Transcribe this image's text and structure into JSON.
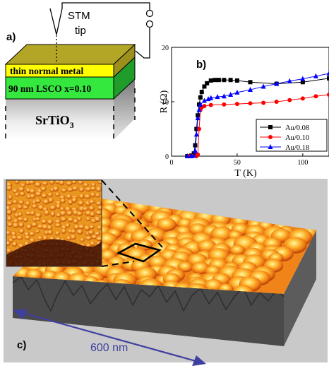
{
  "panel_a": {
    "label": "a)",
    "stm_label": "STM",
    "tip_label": "tip",
    "layer_metal": "thin normal metal",
    "layer_lsco": "90 nm LSCO x=0.10",
    "substrate_base": "SrTiO",
    "substrate_sub": "3",
    "colors": {
      "metal": "#ffff00",
      "metal_top": "#b3a526",
      "lsco": "#2dd336",
      "lsco_front": "#35e83e"
    }
  },
  "panel_b": {
    "label": "b)"
  },
  "panel_c": {
    "label": "c)",
    "scale_label": "600 nm",
    "arrow_color": "#3f3fa0"
  },
  "chart_data": {
    "type": "line",
    "xlabel": "T (K)",
    "ylabel": "R (Ω)",
    "xlim": [
      0,
      120
    ],
    "ylim": [
      0,
      20
    ],
    "xticks": [
      0,
      50,
      100
    ],
    "yticks": [
      0,
      10,
      20
    ],
    "legend": "bottom-right",
    "series": [
      {
        "name": "Au/0.08",
        "color": "#000000",
        "marker": "square",
        "x": [
          12,
          15,
          17,
          18,
          19,
          20,
          21,
          22,
          23,
          25,
          27,
          30,
          33,
          36,
          40,
          45,
          50,
          60,
          80,
          100,
          120
        ],
        "y": [
          0,
          0.1,
          0.5,
          2,
          5,
          7.5,
          9.5,
          10.8,
          11.8,
          12.8,
          13.4,
          13.9,
          14.0,
          14.0,
          14.0,
          14.0,
          13.9,
          13.6,
          13.3,
          13.6,
          14.3
        ]
      },
      {
        "name": "Au/0.10",
        "color": "#ff0000",
        "marker": "circle",
        "x": [
          13,
          16,
          19,
          20,
          21,
          22,
          23,
          25,
          30,
          40,
          50,
          60,
          70,
          80,
          90,
          100,
          110,
          120
        ],
        "y": [
          0,
          0,
          0,
          0.3,
          5,
          8.5,
          9.0,
          9.2,
          9.4,
          9.5,
          9.6,
          9.7,
          9.8,
          10.0,
          10.3,
          10.6,
          11.0,
          11.3
        ]
      },
      {
        "name": "Au/0.18",
        "color": "#0000ff",
        "marker": "triangle",
        "x": [
          12,
          15,
          17,
          18,
          19,
          20,
          21,
          22,
          25,
          28,
          30,
          35,
          40,
          45,
          50,
          60,
          70,
          80,
          90,
          100,
          110,
          120
        ],
        "y": [
          0,
          0,
          0.1,
          1,
          4,
          7,
          8.5,
          9.5,
          10.2,
          10.5,
          10.7,
          10.9,
          11.0,
          11.3,
          11.7,
          12.2,
          12.8,
          13.3,
          13.8,
          14.2,
          14.7,
          15.2
        ]
      }
    ]
  }
}
